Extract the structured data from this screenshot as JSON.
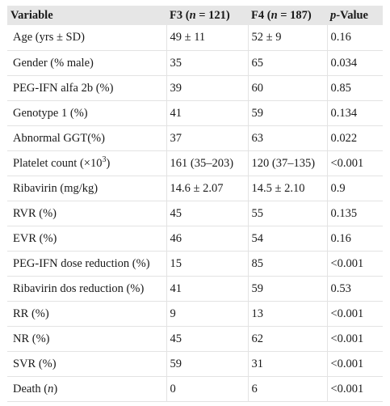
{
  "table": {
    "headers": {
      "variable": "Variable",
      "f3_label": "F3 (",
      "f3_n": "n",
      "f3_count": " = 121)",
      "f4_label": "F4 (",
      "f4_n": "n",
      "f4_count": " = 187)",
      "p_prefix": "p",
      "p_suffix": "-Value"
    },
    "rows": [
      {
        "variable": "Age (yrs ± SD)",
        "f3": "49 ± 11",
        "f4": "52 ± 9",
        "p": "0.16"
      },
      {
        "variable": "Gender (% male)",
        "f3": "35",
        "f4": "65",
        "p": "0.034"
      },
      {
        "variable": "PEG-IFN alfa 2b (%)",
        "f3": "39",
        "f4": "60",
        "p": "0.85"
      },
      {
        "variable": "Genotype 1 (%)",
        "f3": "41",
        "f4": "59",
        "p": "0.134"
      },
      {
        "variable": "Abnormal GGT(%)",
        "f3": "37",
        "f4": "63",
        "p": "0.022"
      },
      {
        "variable_prefix": "Platelet count (×10",
        "variable_sup": "3",
        "variable_suffix": ")",
        "f3": "161 (35–203)",
        "f4": "120 (37–135)",
        "p": "<0.001"
      },
      {
        "variable": "Ribavirin (mg/kg)",
        "f3": "14.6 ± 2.07",
        "f4": "14.5 ± 2.10",
        "p": "0.9"
      },
      {
        "variable": "RVR (%)",
        "f3": "45",
        "f4": "55",
        "p": "0.135"
      },
      {
        "variable": "EVR (%)",
        "f3": "46",
        "f4": "54",
        "p": "0.16"
      },
      {
        "variable": "PEG-IFN dose reduction (%)",
        "f3": "15",
        "f4": "85",
        "p": "<0.001"
      },
      {
        "variable": "Ribavirin dos reduction (%)",
        "f3": "41",
        "f4": "59",
        "p": "0.53"
      },
      {
        "variable": "RR (%)",
        "f3": "9",
        "f4": "13",
        "p": "<0.001"
      },
      {
        "variable": "NR (%)",
        "f3": "45",
        "f4": "62",
        "p": "<0.001"
      },
      {
        "variable": "SVR (%)",
        "f3": "59",
        "f4": "31",
        "p": "<0.001"
      },
      {
        "variable_prefix": "Death (",
        "variable_italic": "n",
        "variable_suffix": ")",
        "f3": "0",
        "f4": "6",
        "p": "<0.001"
      }
    ]
  }
}
